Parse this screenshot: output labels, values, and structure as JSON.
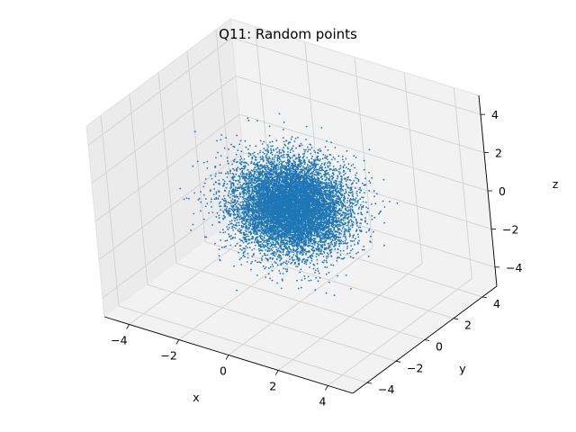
{
  "chart_data": {
    "type": "scatter",
    "projection": "3d",
    "title": "Q11: Random points",
    "xlabel": "x",
    "ylabel": "y",
    "zlabel": "z",
    "xlim": [
      -5,
      5
    ],
    "ylim": [
      -5,
      5
    ],
    "zlim": [
      -5,
      5
    ],
    "xticks": [
      "−4",
      "−2",
      "0",
      "2",
      "4"
    ],
    "yticks": [
      "−4",
      "−2",
      "0",
      "2",
      "4"
    ],
    "zticks": [
      "−4",
      "−2",
      "0",
      "2",
      "4"
    ],
    "grid": true,
    "marker_color": "#1f77b4",
    "series": [
      {
        "distribution": "standard normal in x, y and z",
        "mean": [
          0,
          0,
          0
        ],
        "std": [
          1,
          1,
          1
        ],
        "n_points": 10000
      }
    ]
  }
}
